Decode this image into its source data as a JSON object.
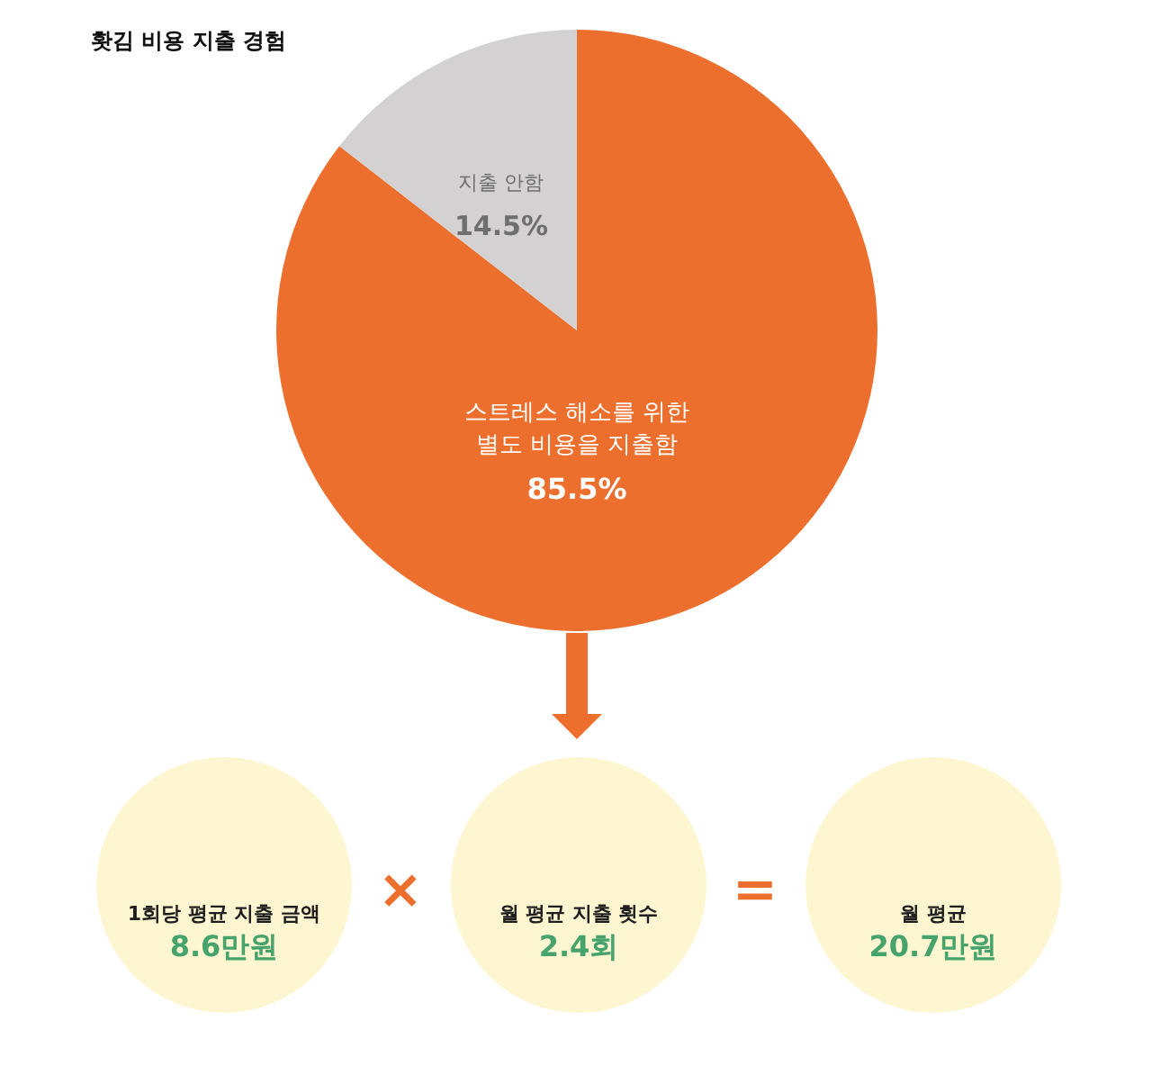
{
  "chart_data": {
    "type": "pie",
    "title": "홧김 비용 지출 경험",
    "categories": [
      "스트레스 해소를 위한 별도 비용을 지출함",
      "지출 안함"
    ],
    "values": [
      85.5,
      14.5
    ],
    "colors": [
      "#ec6f2d",
      "#d3d1d1"
    ],
    "value_labels": [
      "85.5%",
      "14.5%"
    ],
    "annotations": [
      "1회당 평균 지출 금액",
      "8.6만원",
      "×",
      "월 평균 지출 횟수",
      "2.4회",
      "=",
      "월 평균",
      "20.7만원"
    ]
  }
}
